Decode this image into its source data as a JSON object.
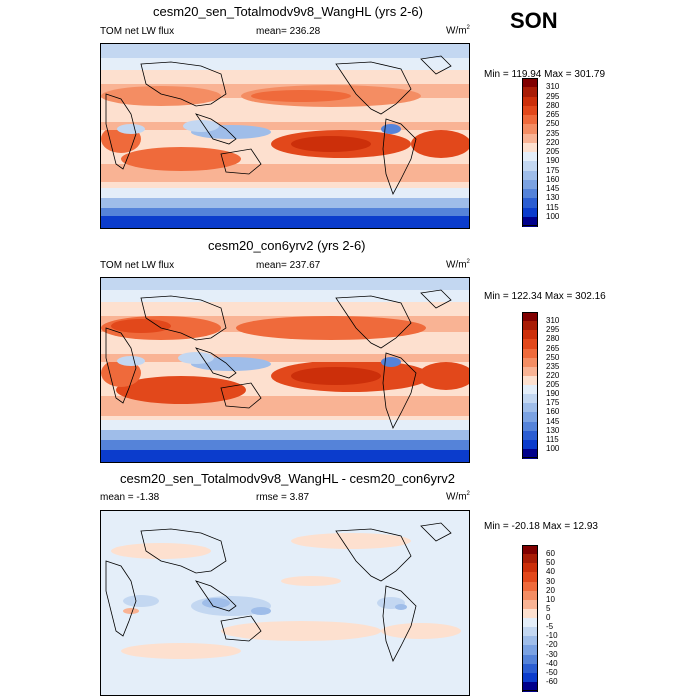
{
  "season": "SON",
  "panels": [
    {
      "title": "cesm20_sen_Totalmodv9v8_WangHL (yrs 2-6)",
      "left_label": "TOM net LW flux",
      "center_label": "mean= 236.28",
      "units_base": "W/m",
      "units_exp": "2",
      "minmax": "Min = 119.94 Max = 301.79",
      "levels": [
        "310",
        "295",
        "280",
        "265",
        "250",
        "235",
        "220",
        "205",
        "190",
        "175",
        "160",
        "145",
        "130",
        "115",
        "100"
      ],
      "colors": [
        "#800000",
        "#a81c06",
        "#cc2f0a",
        "#e2481b",
        "#ef6a3b",
        "#f48d63",
        "#f9b394",
        "#fde0cf",
        "#e4eef9",
        "#c3d7f1",
        "#9fbde9",
        "#7ba2e2",
        "#5583d9",
        "#2c5ed2",
        "#0b3ccc",
        "#00008b"
      ]
    },
    {
      "title": "cesm20_con6yrv2 (yrs 2-6)",
      "left_label": "TOM net LW flux",
      "center_label": "mean= 237.67",
      "units_base": "W/m",
      "units_exp": "2",
      "minmax": "Min = 122.34 Max = 302.16",
      "levels": [
        "310",
        "295",
        "280",
        "265",
        "250",
        "235",
        "220",
        "205",
        "190",
        "175",
        "160",
        "145",
        "130",
        "115",
        "100"
      ],
      "colors": [
        "#800000",
        "#a81c06",
        "#cc2f0a",
        "#e2481b",
        "#ef6a3b",
        "#f48d63",
        "#f9b394",
        "#fde0cf",
        "#e4eef9",
        "#c3d7f1",
        "#9fbde9",
        "#7ba2e2",
        "#5583d9",
        "#2c5ed2",
        "#0b3ccc",
        "#00008b"
      ]
    },
    {
      "title": "cesm20_sen_Totalmodv9v8_WangHL - cesm20_con6yrv2",
      "left_label": "mean =  -1.38",
      "center_label": "rmse =   3.87",
      "units_base": "W/m",
      "units_exp": "2",
      "minmax": "Min = -20.18 Max =  12.93",
      "levels": [
        "60",
        "50",
        "40",
        "30",
        "20",
        "10",
        "5",
        "0",
        "-5",
        "-10",
        "-20",
        "-30",
        "-40",
        "-50",
        "-60"
      ],
      "colors": [
        "#800000",
        "#a81c06",
        "#cc2f0a",
        "#e2481b",
        "#ef6a3b",
        "#f48d63",
        "#f9b394",
        "#fde0cf",
        "#e4eef9",
        "#c3d7f1",
        "#9fbde9",
        "#7ba2e2",
        "#5583d9",
        "#2c5ed2",
        "#0b3ccc",
        "#00008b"
      ]
    }
  ]
}
